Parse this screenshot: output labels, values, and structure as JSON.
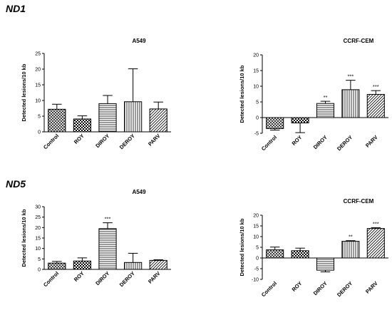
{
  "sections": [
    {
      "label": "ND1"
    },
    {
      "label": "ND5"
    }
  ],
  "pattern_names": [
    "crosshatch-pattern",
    "checker-pattern",
    "horizontal-lines-pattern",
    "vertical-lines-pattern",
    "diagonal-lines-pattern"
  ],
  "colors": {
    "axis": "#000000",
    "bar_stroke": "#000000",
    "background": "#ffffff"
  },
  "chart_data": [
    {
      "type": "bar",
      "section": "ND1",
      "title": "A549",
      "ylabel": "Detected lesions/10 kb",
      "xlabel": "",
      "categories": [
        "Control",
        "ROY",
        "DIROY",
        "DEROY",
        "PARV"
      ],
      "values": [
        7.2,
        4.1,
        9.0,
        9.6,
        7.3
      ],
      "errors": [
        1.6,
        1.0,
        2.6,
        10.5,
        2.2
      ],
      "significance": [
        "",
        "",
        "",
        "",
        ""
      ],
      "ylim": [
        0,
        25
      ],
      "yticks": [
        "0",
        "5",
        "10",
        "15",
        "20",
        "25"
      ],
      "grid": false,
      "legend": "none"
    },
    {
      "type": "bar",
      "section": "ND1",
      "title": "CCRF-CEM",
      "ylabel": "Detected lesions/10 kb",
      "xlabel": "",
      "categories": [
        "Control",
        "ROY",
        "DIROY",
        "DEROY",
        "PARV"
      ],
      "values": [
        -3.5,
        -1.7,
        4.5,
        8.9,
        7.4
      ],
      "errors": [
        0.5,
        3.1,
        0.7,
        3.0,
        1.2
      ],
      "significance": [
        "",
        "",
        "**",
        "***",
        "***"
      ],
      "ylim": [
        -5,
        20
      ],
      "yticks": [
        "-5",
        "0",
        "5",
        "10",
        "15",
        "20"
      ],
      "grid": false,
      "legend": "none"
    },
    {
      "type": "bar",
      "section": "ND5",
      "title": "A549",
      "ylabel": "Detected lesions/10 kb",
      "xlabel": "",
      "categories": [
        "Control",
        "ROY",
        "DIROY",
        "DEROY",
        "PARV"
      ],
      "values": [
        3.0,
        4.0,
        19.5,
        3.3,
        4.3
      ],
      "errors": [
        0.8,
        1.5,
        2.8,
        4.4,
        0.3
      ],
      "significance": [
        "",
        "",
        "***",
        "",
        ""
      ],
      "ylim": [
        0,
        30
      ],
      "yticks": [
        "0",
        "5",
        "10",
        "15",
        "20",
        "25",
        "30"
      ],
      "grid": false,
      "legend": "none"
    },
    {
      "type": "bar",
      "section": "ND5",
      "title": "CCRF-CEM",
      "ylabel": "Detected lesions/10 kb",
      "xlabel": "",
      "categories": [
        "Control",
        "ROY",
        "DIROY",
        "DEROY",
        "PARV"
      ],
      "values": [
        3.8,
        3.4,
        -5.7,
        7.8,
        13.8
      ],
      "errors": [
        1.3,
        1.2,
        0.8,
        0.3,
        0.4
      ],
      "significance": [
        "",
        "",
        "",
        "**",
        "***"
      ],
      "ylim": [
        -10,
        20
      ],
      "yticks": [
        "-10",
        "-5",
        "0",
        "5",
        "10",
        "15",
        "20"
      ],
      "grid": false,
      "legend": "none"
    }
  ]
}
